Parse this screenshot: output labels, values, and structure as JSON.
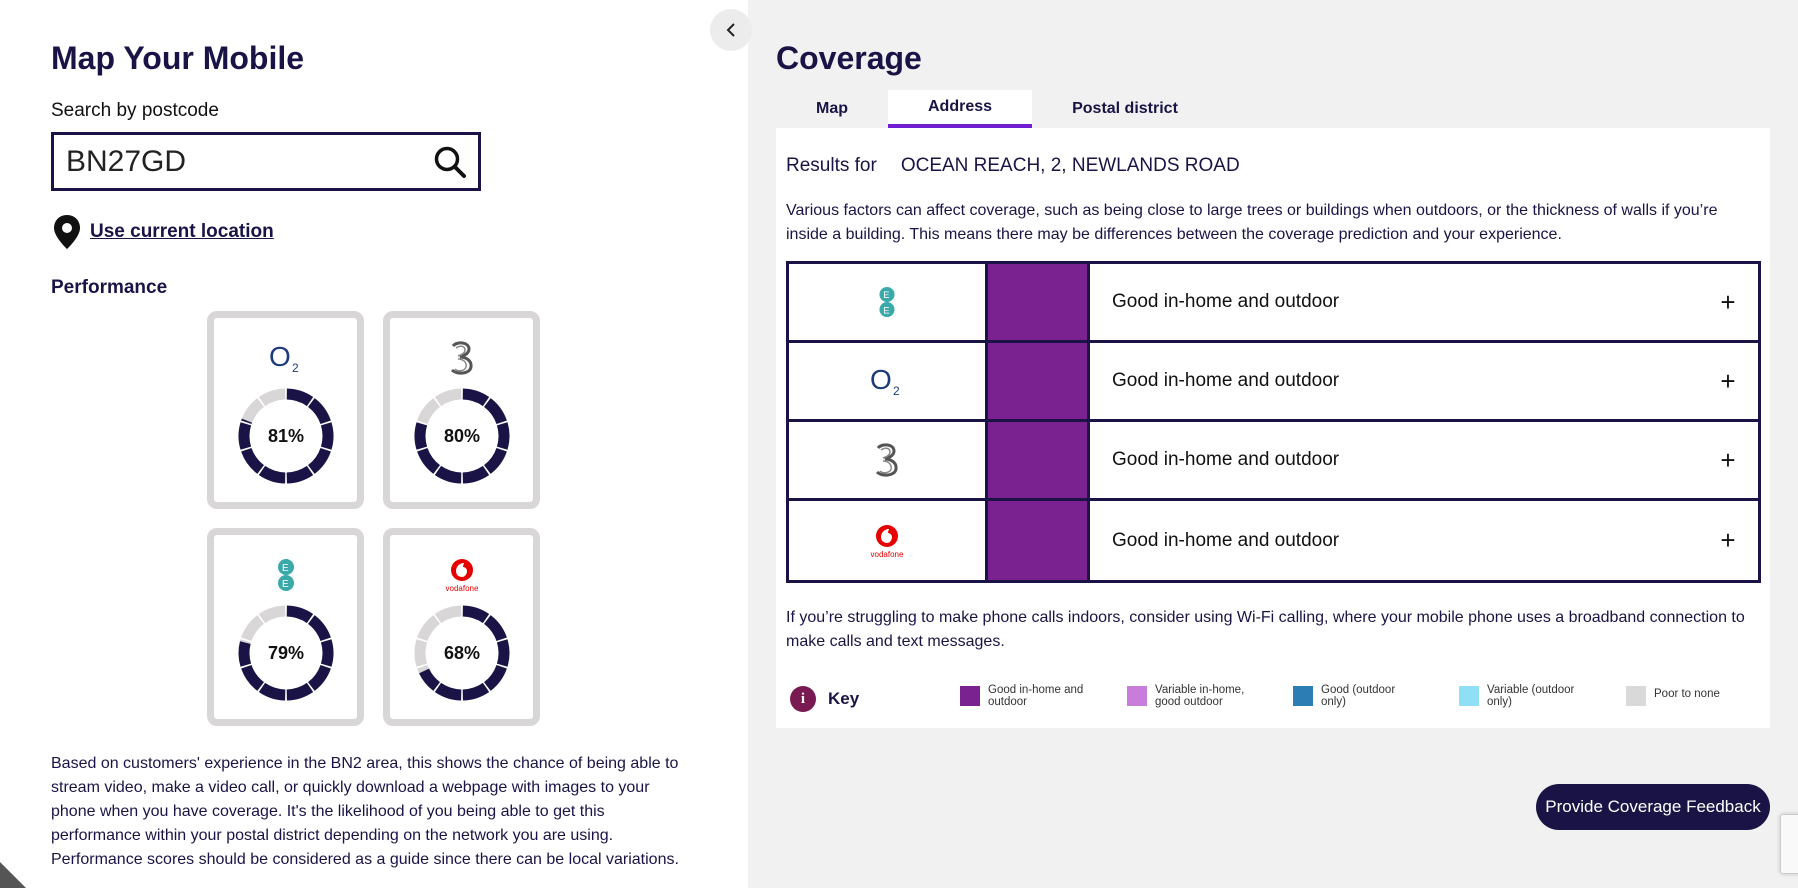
{
  "left": {
    "title": "Map Your Mobile",
    "search_label": "Search by postcode",
    "search_value": "BN27GD",
    "use_location": "Use current location",
    "performance_title": "Performance",
    "cards": [
      {
        "network": "O2",
        "logo": "o2-logo",
        "percent": 81,
        "percent_label": "81%"
      },
      {
        "network": "Three",
        "logo": "three-logo",
        "percent": 80,
        "percent_label": "80%"
      },
      {
        "network": "EE",
        "logo": "ee-logo",
        "percent": 79,
        "percent_label": "79%"
      },
      {
        "network": "Vodafone",
        "logo": "vodafone-logo",
        "percent": 68,
        "percent_label": "68%"
      }
    ],
    "vodafone_wordmark": "vodafone",
    "description": "Based on customers' experience in the BN2 area, this shows the chance of being able to stream video, make a video call, or quickly download a webpage with images to your phone when you have coverage. It's the likelihood of you being able to get this performance within your postal district depending on the network you are using. Performance scores should be considered as a guide since there can be local variations."
  },
  "right": {
    "title": "Coverage",
    "tabs": [
      {
        "label": "Map",
        "active": false
      },
      {
        "label": "Address",
        "active": true
      },
      {
        "label": "Postal district",
        "active": false
      }
    ],
    "results_prefix": "Results for",
    "results_address": "OCEAN REACH, 2, NEWLANDS ROAD",
    "disclaimer": "Various factors can affect coverage, such as being close to large trees or buildings when outdoors, or the thickness of walls if you’re inside a building. This means there may be differences between the coverage prediction and your experience.",
    "coverage": [
      {
        "network": "EE",
        "logo": "ee-logo",
        "status": "Good in-home and outdoor",
        "color": "#7b2291"
      },
      {
        "network": "O2",
        "logo": "o2-logo",
        "status": "Good in-home and outdoor",
        "color": "#7b2291"
      },
      {
        "network": "Three",
        "logo": "three-logo",
        "status": "Good in-home and outdoor",
        "color": "#7b2291"
      },
      {
        "network": "Vodafone",
        "logo": "vodafone-logo",
        "status": "Good in-home and outdoor",
        "color": "#7b2291"
      }
    ],
    "wifi_note": "If you’re struggling to make phone calls indoors, consider using Wi-Fi calling, where your mobile phone uses a broadband connection to make calls and text messages.",
    "key_title": "Key",
    "key_items": [
      {
        "label": "Good in-home and outdoor",
        "color": "#7b2291"
      },
      {
        "label": "Variable in-home, good outdoor",
        "color": "#c97ddb"
      },
      {
        "label": "Good (outdoor only)",
        "color": "#2b7db3"
      },
      {
        "label": "Variable (outdoor only)",
        "color": "#8fe0f5"
      },
      {
        "label": "Poor to none",
        "color": "#d9d9d9"
      }
    ],
    "feedback_button": "Provide Coverage Feedback"
  },
  "colors": {
    "navy": "#1a1446",
    "accent_purple": "#6f1ed1",
    "donut_track": "#d9d6d8"
  }
}
